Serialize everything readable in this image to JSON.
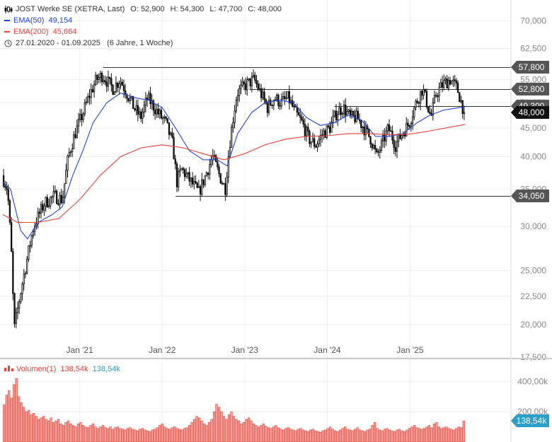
{
  "header": {
    "title": "JOST Werke SE (XETRA, Last)",
    "ohlc": [
      {
        "label": "O:",
        "value": "52,900"
      },
      {
        "label": "H:",
        "value": "54,300"
      },
      {
        "label": "L:",
        "value": "47,700"
      },
      {
        "label": "C:",
        "value": "48,000"
      }
    ],
    "ema50": {
      "label": "EMA(50)",
      "value": "49,154",
      "color": "#2244dd"
    },
    "ema200": {
      "label": "EMA(200)",
      "value": "45,664",
      "color": "#e8423a"
    },
    "range": {
      "text": "27.01.2020 - 01.09.2025",
      "duration": "(6 Jahre, 1 Woche)"
    }
  },
  "volume_legend": {
    "label": "Volumen(1)",
    "value1": "138,54k",
    "value2": "138,54k",
    "label_color": "#e0453a",
    "value2_color": "#2a9fc9"
  },
  "colors": {
    "candle": "#111111",
    "ema50": "#2244dd",
    "ema200": "#e8423a",
    "volume_fill": "#f4a09a",
    "volume_stroke": "#e0453a",
    "level_line": "#333333",
    "badge": "#555555",
    "badge_close": "#111111",
    "badge_volume": "#2a9fc9",
    "grid": "#eeeeee"
  },
  "chart_data": [
    {
      "type": "candlestick",
      "y_scale": "log",
      "ylim": [
        17500,
        72000
      ],
      "y_ticks": [
        {
          "value": 70000,
          "label": "70,000"
        },
        {
          "value": 62500,
          "label": "62,500"
        },
        {
          "value": 55000,
          "label": "55,000"
        },
        {
          "value": 50000,
          "label": "50,000"
        },
        {
          "value": 45000,
          "label": "45,000"
        },
        {
          "value": 40000,
          "label": "40,000"
        },
        {
          "value": 35000,
          "label": "35,000"
        },
        {
          "value": 30000,
          "label": "30,000"
        },
        {
          "value": 25000,
          "label": "25,000"
        },
        {
          "value": 22500,
          "label": "22,500"
        },
        {
          "value": 20000,
          "label": "20,000"
        },
        {
          "value": 17500,
          "label": "17,500"
        }
      ],
      "x_range": [
        "2020-01-27",
        "2025-09-01"
      ],
      "x_ticks": [
        {
          "date": "2021-01-01",
          "label": "Jan '21"
        },
        {
          "date": "2022-01-01",
          "label": "Jan '22"
        },
        {
          "date": "2023-01-01",
          "label": "Jan '23"
        },
        {
          "date": "2024-01-01",
          "label": "Jan '24"
        },
        {
          "date": "2025-01-01",
          "label": "Jan '25"
        }
      ],
      "series": [
        {
          "name": "JOST Werke SE (XETRA, Last)",
          "kind": "close-path",
          "points": [
            [
              "2020-01-27",
              37000
            ],
            [
              "2020-02-20",
              35000
            ],
            [
              "2020-03-10",
              26000
            ],
            [
              "2020-03-20",
              19500
            ],
            [
              "2020-04-15",
              22500
            ],
            [
              "2020-05-15",
              26000
            ],
            [
              "2020-06-15",
              30000
            ],
            [
              "2020-08-01",
              33000
            ],
            [
              "2020-09-15",
              34000
            ],
            [
              "2020-10-20",
              33500
            ],
            [
              "2020-11-15",
              40000
            ],
            [
              "2020-12-15",
              44000
            ],
            [
              "2021-01-20",
              48000
            ],
            [
              "2021-02-20",
              52000
            ],
            [
              "2021-03-20",
              55000
            ],
            [
              "2021-04-15",
              56000
            ],
            [
              "2021-05-15",
              54000
            ],
            [
              "2021-06-01",
              53000
            ],
            [
              "2021-07-01",
              55000
            ],
            [
              "2021-08-01",
              52000
            ],
            [
              "2021-09-01",
              49000
            ],
            [
              "2021-10-01",
              47000
            ],
            [
              "2021-11-01",
              51000
            ],
            [
              "2021-12-15",
              48000
            ],
            [
              "2022-01-20",
              46000
            ],
            [
              "2022-02-20",
              42000
            ],
            [
              "2022-03-10",
              36000
            ],
            [
              "2022-04-01",
              38000
            ],
            [
              "2022-05-01",
              36500
            ],
            [
              "2022-06-15",
              34500
            ],
            [
              "2022-07-15",
              37000
            ],
            [
              "2022-08-15",
              40000
            ],
            [
              "2022-09-15",
              37000
            ],
            [
              "2022-10-10",
              35000
            ],
            [
              "2022-11-01",
              43000
            ],
            [
              "2022-12-01",
              52000
            ],
            [
              "2023-01-15",
              54000
            ],
            [
              "2023-02-15",
              55000
            ],
            [
              "2023-03-15",
              52000
            ],
            [
              "2023-04-15",
              49000
            ],
            [
              "2023-05-15",
              51000
            ],
            [
              "2023-06-15",
              50000
            ],
            [
              "2023-07-15",
              51000
            ],
            [
              "2023-08-15",
              48000
            ],
            [
              "2023-09-15",
              46000
            ],
            [
              "2023-10-15",
              43000
            ],
            [
              "2023-11-15",
              42000
            ],
            [
              "2023-12-15",
              44000
            ],
            [
              "2024-01-15",
              45000
            ],
            [
              "2024-02-15",
              48000
            ],
            [
              "2024-03-15",
              49000
            ],
            [
              "2024-04-15",
              47000
            ],
            [
              "2024-05-15",
              47000
            ],
            [
              "2024-06-15",
              45000
            ],
            [
              "2024-07-15",
              43000
            ],
            [
              "2024-08-10",
              40000
            ],
            [
              "2024-09-01",
              42000
            ],
            [
              "2024-10-01",
              45000
            ],
            [
              "2024-11-01",
              42000
            ],
            [
              "2024-12-01",
              44000
            ],
            [
              "2025-01-01",
              46000
            ],
            [
              "2025-02-01",
              50000
            ],
            [
              "2025-03-01",
              53000
            ],
            [
              "2025-04-07",
              47000
            ],
            [
              "2025-05-01",
              52000
            ],
            [
              "2025-06-01",
              54000
            ],
            [
              "2025-07-01",
              55000
            ],
            [
              "2025-08-01",
              53000
            ],
            [
              "2025-09-01",
              48000
            ]
          ]
        },
        {
          "name": "EMA(50)",
          "kind": "line",
          "points": [
            [
              "2020-01-27",
              36000
            ],
            [
              "2020-03-01",
              35000
            ],
            [
              "2020-04-15",
              29500
            ],
            [
              "2020-05-15",
              28500
            ],
            [
              "2020-07-01",
              30500
            ],
            [
              "2020-09-01",
              31500
            ],
            [
              "2020-10-15",
              32500
            ],
            [
              "2020-12-01",
              37000
            ],
            [
              "2021-01-15",
              41000
            ],
            [
              "2021-03-01",
              46000
            ],
            [
              "2021-05-01",
              50000
            ],
            [
              "2021-07-01",
              52000
            ],
            [
              "2021-09-01",
              51000
            ],
            [
              "2021-11-01",
              50500
            ],
            [
              "2022-01-01",
              49000
            ],
            [
              "2022-03-01",
              45000
            ],
            [
              "2022-05-01",
              41000
            ],
            [
              "2022-07-01",
              39500
            ],
            [
              "2022-09-01",
              39500
            ],
            [
              "2022-10-15",
              38500
            ],
            [
              "2022-12-01",
              44000
            ],
            [
              "2023-02-01",
              48000
            ],
            [
              "2023-04-01",
              50000
            ],
            [
              "2023-06-01",
              50500
            ],
            [
              "2023-08-01",
              50000
            ],
            [
              "2023-10-01",
              47000
            ],
            [
              "2023-12-01",
              45500
            ],
            [
              "2024-02-01",
              46000
            ],
            [
              "2024-04-01",
              47500
            ],
            [
              "2024-06-01",
              46500
            ],
            [
              "2024-08-01",
              43500
            ],
            [
              "2024-10-01",
              43500
            ],
            [
              "2024-12-01",
              44000
            ],
            [
              "2025-02-01",
              46000
            ],
            [
              "2025-04-01",
              47500
            ],
            [
              "2025-06-01",
              48500
            ],
            [
              "2025-09-01",
              49154
            ]
          ]
        },
        {
          "name": "EMA(200)",
          "kind": "line",
          "points": [
            [
              "2020-01-27",
              31500
            ],
            [
              "2020-04-01",
              30500
            ],
            [
              "2020-07-01",
              30500
            ],
            [
              "2020-10-01",
              31000
            ],
            [
              "2021-01-01",
              33500
            ],
            [
              "2021-04-01",
              37000
            ],
            [
              "2021-07-01",
              40000
            ],
            [
              "2021-10-01",
              41500
            ],
            [
              "2022-01-01",
              42000
            ],
            [
              "2022-04-01",
              41500
            ],
            [
              "2022-07-01",
              40500
            ],
            [
              "2022-10-01",
              39500
            ],
            [
              "2023-01-01",
              40500
            ],
            [
              "2023-04-01",
              42000
            ],
            [
              "2023-07-01",
              43000
            ],
            [
              "2023-10-01",
              43500
            ],
            [
              "2024-01-01",
              43600
            ],
            [
              "2024-04-01",
              44000
            ],
            [
              "2024-07-01",
              44000
            ],
            [
              "2024-10-01",
              43800
            ],
            [
              "2025-01-01",
              43900
            ],
            [
              "2025-04-01",
              44500
            ],
            [
              "2025-07-01",
              45200
            ],
            [
              "2025-09-01",
              45664
            ]
          ]
        }
      ],
      "levels": [
        {
          "value": 57800,
          "label": "57,800",
          "from": "2021-04-15"
        },
        {
          "value": 52800,
          "label": "52,800",
          "from": "2023-01-25"
        },
        {
          "value": 49300,
          "label": "49,300",
          "from": "2024-02-01"
        },
        {
          "value": 34050,
          "label": "34,050",
          "from": "2022-03-01"
        }
      ],
      "last": {
        "value": 48000,
        "label": "48,000"
      }
    },
    {
      "type": "bar",
      "name": "Volumen(1)",
      "ylim": [
        0,
        500
      ],
      "y_ticks": [
        {
          "value": 400,
          "label": "400,00k"
        },
        {
          "value": 200,
          "label": "200,00k"
        }
      ],
      "last": {
        "value": 138.54,
        "label": "138,54k"
      },
      "values": [
        245,
        310,
        340,
        290,
        380,
        420,
        300,
        260,
        230,
        200,
        210,
        180,
        190,
        170,
        150,
        160,
        170,
        150,
        140,
        160,
        130,
        140,
        150,
        120,
        110,
        130,
        140,
        120,
        110,
        100,
        120,
        130,
        110,
        100,
        95,
        110,
        120,
        100,
        90,
        100,
        110,
        95,
        90,
        100,
        85,
        95,
        100,
        90,
        85,
        80,
        90,
        95,
        85,
        80,
        75,
        85,
        90,
        80,
        75,
        70,
        80,
        85,
        95,
        110,
        120,
        100,
        90,
        85,
        95,
        100,
        90,
        85,
        80,
        90,
        95,
        110,
        130,
        150,
        170,
        160,
        140,
        120,
        110,
        130,
        150,
        200,
        250,
        230,
        200,
        170,
        150,
        180,
        200,
        170,
        150,
        140,
        120,
        130,
        150,
        160,
        140,
        120,
        110,
        100,
        110,
        120,
        105,
        95,
        90,
        100,
        110,
        95,
        85,
        80,
        90,
        95,
        85,
        80,
        75,
        85,
        90,
        80,
        75,
        70,
        80,
        85,
        75,
        70,
        65,
        75,
        80,
        90,
        100,
        85,
        75,
        70,
        80,
        90,
        100,
        85,
        80,
        75,
        85,
        95,
        80,
        75,
        70,
        80,
        85,
        110,
        130,
        90,
        80,
        75,
        85,
        90,
        80,
        75,
        70,
        80,
        85,
        75,
        70,
        80,
        90,
        100,
        110,
        95,
        90,
        85,
        90,
        100,
        110,
        95,
        120,
        130,
        100,
        90,
        95,
        100,
        90,
        85,
        80,
        90,
        100,
        95,
        139
      ]
    }
  ]
}
